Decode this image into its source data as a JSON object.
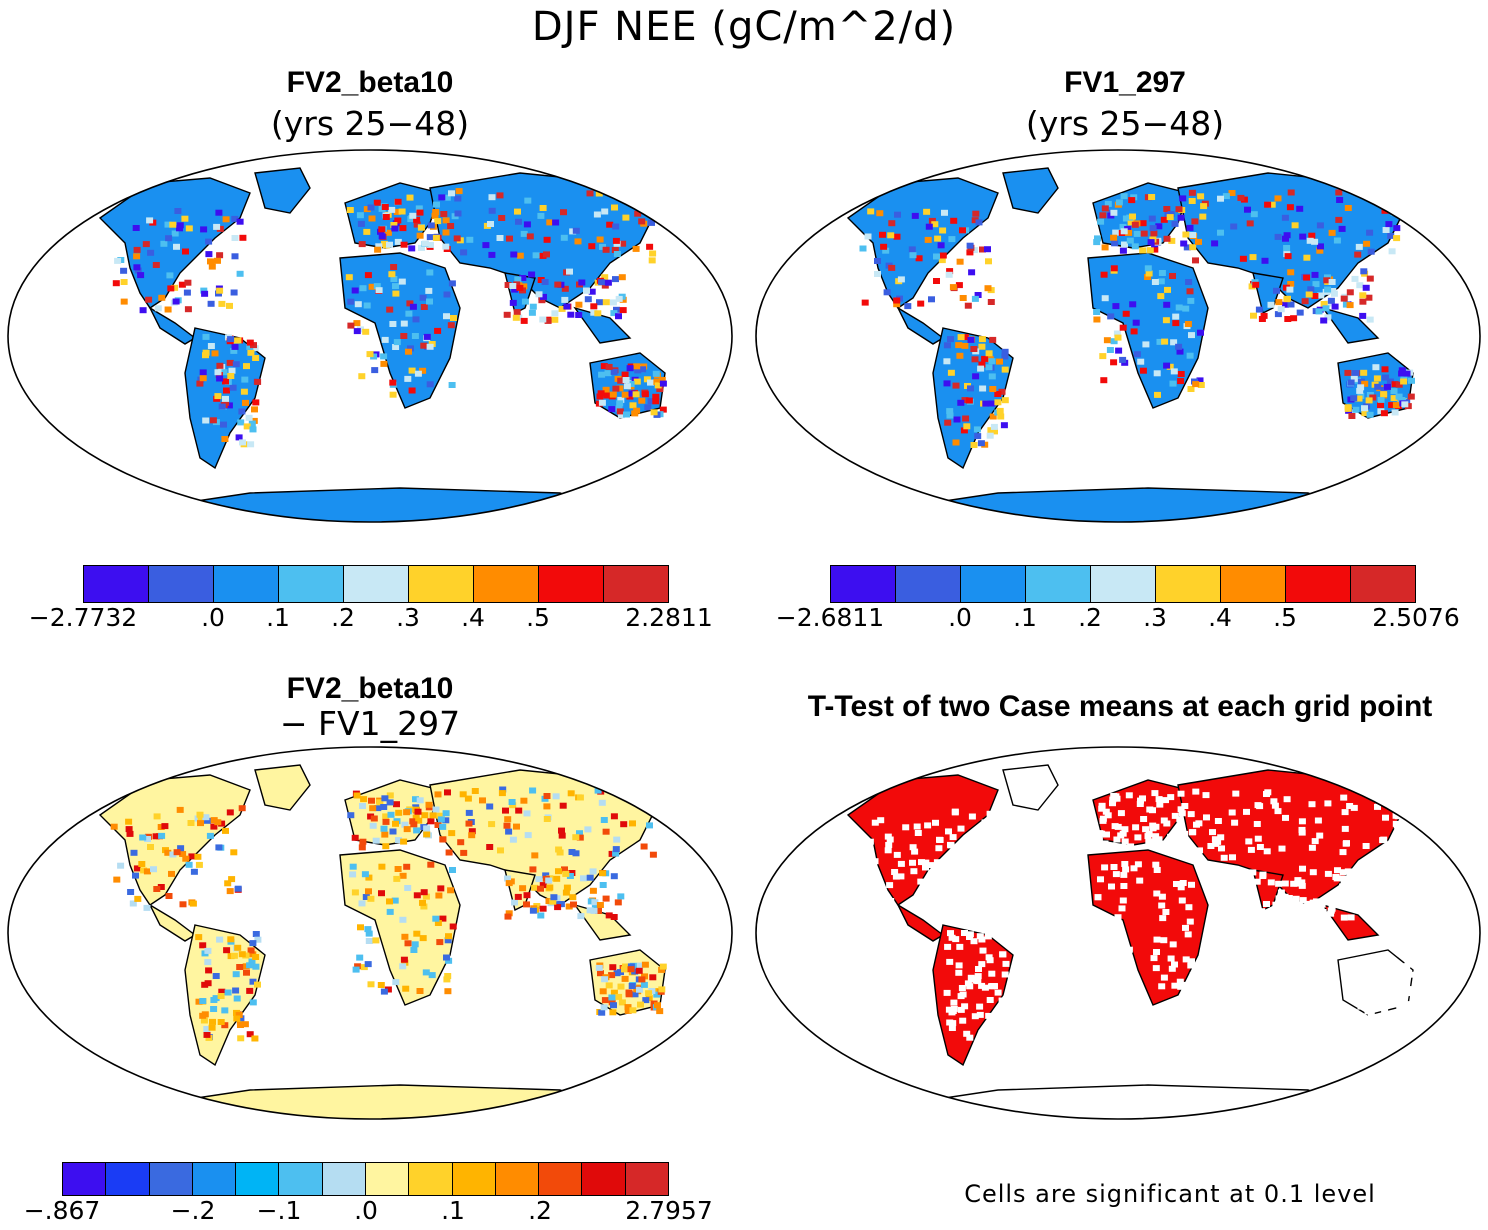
{
  "main_title": "DJF NEE (gC/m^2/d)",
  "panels": {
    "top_left": {
      "title": "FV2_beta10",
      "subtitle": "(yrs 25−48)",
      "colorbar": {
        "colors": [
          "#3d0ef0",
          "#3a5ee0",
          "#1a90f0",
          "#4dbff0",
          "#c8e8f5",
          "#ffd22a",
          "#ff8c00",
          "#f20a0a",
          "#d62828"
        ],
        "labels": [
          "−2.7732",
          ".0",
          ".1",
          ".2",
          ".3",
          ".4",
          ".5",
          "2.2811"
        ]
      }
    },
    "top_right": {
      "title": "FV1_297",
      "subtitle": "(yrs 25−48)",
      "colorbar": {
        "colors": [
          "#3d0ef0",
          "#3a5ee0",
          "#1a90f0",
          "#4dbff0",
          "#c8e8f5",
          "#ffd22a",
          "#ff8c00",
          "#f20a0a",
          "#d62828"
        ],
        "labels": [
          "−2.6811",
          ".0",
          ".1",
          ".2",
          ".3",
          ".4",
          ".5",
          "2.5076"
        ]
      }
    },
    "bottom_left": {
      "title": "FV2_beta10",
      "subtitle": "− FV1_297",
      "colorbar": {
        "colors": [
          "#3d0ef0",
          "#1a3cf5",
          "#3a6ae0",
          "#1a90f0",
          "#00b4f5",
          "#4dbff0",
          "#b5ddf2",
          "#fff5a0",
          "#ffd22a",
          "#ffb400",
          "#ff8c00",
          "#f24a0a",
          "#e00a0a",
          "#d62828"
        ],
        "labels": [
          "−.867",
          "−.2",
          "−.1",
          ".0",
          ".1",
          ".2",
          "2.7957"
        ]
      }
    },
    "bottom_right": {
      "title": "T-Test of two Case means at each grid point",
      "footnote": "Cells are significant at 0.1 level"
    }
  },
  "colors": {
    "land_top": "#1a90f0",
    "land_diff": "#fff5a0",
    "signif": "#f20a0a"
  }
}
